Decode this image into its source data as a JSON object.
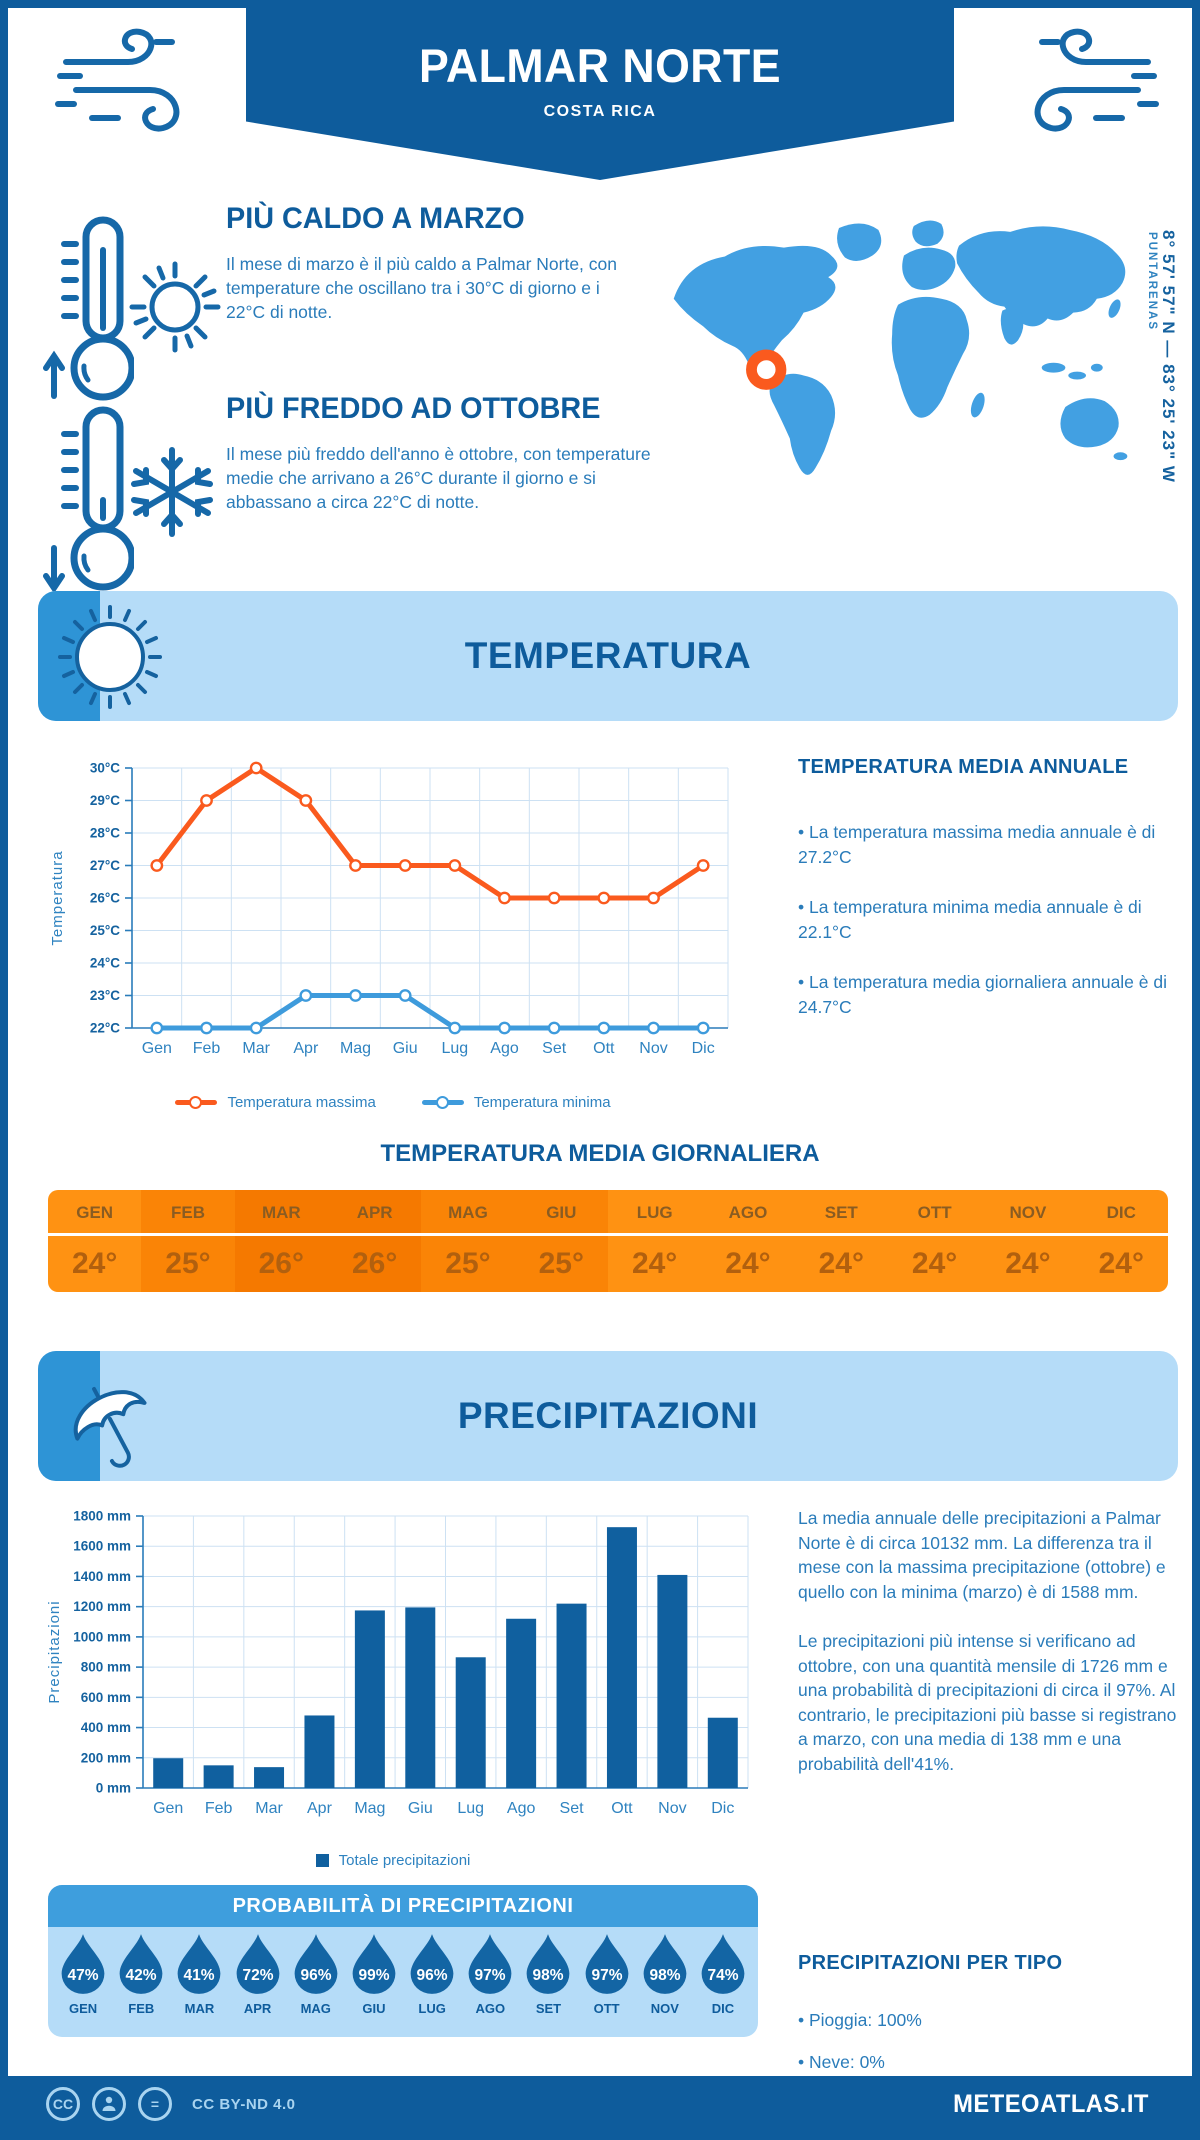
{
  "colors": {
    "primary_dark": "#0e5c9c",
    "accent_medium": "#2e94d6",
    "panel_light": "#b5dcf8",
    "map_blue": "#42a0e2",
    "marker_orange": "#fa5a1e",
    "grid": "#cde1f3",
    "axis": "#2a7cba",
    "drop_blue": "#1365a4",
    "bar_blue": "#10609f"
  },
  "header": {
    "title": "PALMAR NORTE",
    "subtitle": "COSTA RICA"
  },
  "highlights": [
    {
      "title": "PIÙ CALDO A MARZO",
      "text": "Il mese di marzo è il più caldo a Palmar Norte, con temperature che oscillano tra i 30°C di giorno e i 22°C di notte.",
      "icons": [
        "thermometer-up-icon",
        "sun-icon"
      ]
    },
    {
      "title": "PIÙ FREDDO AD OTTOBRE",
      "text": "Il mese più freddo dell'anno è ottobre, con temperature medie che arrivano a 26°C durante il giorno e si abbassano a circa 22°C di notte.",
      "icons": [
        "thermometer-down-icon",
        "snowflake-icon"
      ]
    }
  ],
  "map": {
    "coordinates": "8° 57' 57\" N — 83° 25' 23\" W",
    "region": "PUNTARENAS",
    "marker": "orange-ring-on-costa-rica"
  },
  "temperature_section": {
    "banner_title": "TEMPERATURA",
    "annual": {
      "title": "TEMPERATURA MEDIA ANNUALE",
      "bullets": [
        "• La temperatura massima media annuale è di 27.2°C",
        "• La temperatura minima media annuale è di 22.1°C",
        "• La temperatura media giornaliera annuale è di 24.7°C"
      ]
    },
    "daily": {
      "title": "TEMPERATURA MEDIA GIORNALIERA",
      "months": [
        "GEN",
        "FEB",
        "MAR",
        "APR",
        "MAG",
        "GIU",
        "LUG",
        "AGO",
        "SET",
        "OTT",
        "NOV",
        "DIC"
      ],
      "values": [
        24,
        25,
        26,
        26,
        25,
        25,
        24,
        24,
        24,
        24,
        24,
        24
      ],
      "unit": "°",
      "value_colors": {
        "24": "#ff9212",
        "25": "#fa8406",
        "26": "#f57900"
      }
    }
  },
  "precipitation_section": {
    "banner_title": "PRECIPITAZIONI",
    "paragraphs": [
      "La media annuale delle precipitazioni a Palmar Norte è di circa 10132 mm. La differenza tra il mese con la massima precipitazione (ottobre) e quello con la minima (marzo) è di 1588 mm.",
      "Le precipitazioni più intense si verificano ad ottobre, con una quantità mensile di 1726 mm e una probabilità di precipitazioni di circa il 97%. Al contrario, le precipitazioni più basse si registrano a marzo, con una media di 138 mm e una probabilità dell'41%."
    ],
    "probability": {
      "title": "PROBABILITÀ DI PRECIPITAZIONI",
      "months": [
        "GEN",
        "FEB",
        "MAR",
        "APR",
        "MAG",
        "GIU",
        "LUG",
        "AGO",
        "SET",
        "OTT",
        "NOV",
        "DIC"
      ],
      "values": [
        47,
        42,
        41,
        72,
        96,
        99,
        96,
        97,
        98,
        97,
        98,
        74
      ],
      "unit": "%"
    },
    "types": {
      "title": "PRECIPITAZIONI PER TIPO",
      "bullets": [
        "• Pioggia: 100%",
        "• Neve: 0%"
      ]
    }
  },
  "chart_data": [
    {
      "type": "line",
      "title": "",
      "x": [
        "Gen",
        "Feb",
        "Mar",
        "Apr",
        "Mag",
        "Giu",
        "Lug",
        "Ago",
        "Set",
        "Ott",
        "Nov",
        "Dic"
      ],
      "ylabel": "Temperatura",
      "ylim": [
        22,
        30
      ],
      "ytick_step": 1,
      "ytick_suffix": "°C",
      "grid": true,
      "legend_position": "bottom",
      "series": [
        {
          "name": "Temperatura massima",
          "color": "#fa5a1e",
          "values": [
            27,
            29,
            30,
            29,
            27,
            27,
            27,
            26,
            26,
            26,
            26,
            27
          ]
        },
        {
          "name": "Temperatura minima",
          "color": "#3e9bdc",
          "values": [
            22,
            22,
            22,
            23,
            23,
            23,
            22,
            22,
            22,
            22,
            22,
            22
          ]
        }
      ]
    },
    {
      "type": "bar",
      "title": "",
      "x": [
        "Gen",
        "Feb",
        "Mar",
        "Apr",
        "Mag",
        "Giu",
        "Lug",
        "Ago",
        "Set",
        "Ott",
        "Nov",
        "Dic"
      ],
      "ylabel": "Precipitazioni",
      "ylim": [
        0,
        1800
      ],
      "ytick_step": 200,
      "ytick_suffix": " mm",
      "grid": true,
      "legend": "Totale precipitazioni",
      "bar_color": "#10609f",
      "values": [
        197,
        150,
        138,
        480,
        1175,
        1195,
        865,
        1120,
        1220,
        1726,
        1410,
        465
      ]
    }
  ],
  "footer": {
    "license": "CC BY-ND 4.0",
    "brand": "METEOATLAS.IT"
  }
}
